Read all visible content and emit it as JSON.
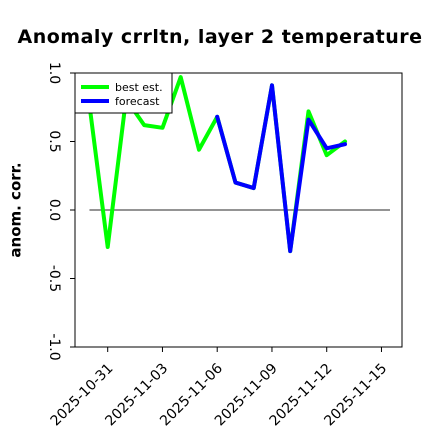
{
  "chart_data": {
    "type": "line",
    "title": "Anomaly crrltn, layer 2 temperature",
    "xlabel": "",
    "ylabel": "anom. corr.",
    "ylim": [
      -1.0,
      1.0
    ],
    "yticks": [
      -1.0,
      -0.5,
      0.0,
      0.5,
      1.0
    ],
    "ytick_labels": [
      "-1.0",
      "-0.5",
      "0.0",
      "0.5",
      "1.0"
    ],
    "xlim": [
      "2025-10-29T05:00",
      "2025-11-16T03:00"
    ],
    "xticks": [
      "2025-10-31",
      "2025-11-03",
      "2025-11-06",
      "2025-11-09",
      "2025-11-12",
      "2025-11-15"
    ],
    "xtick_labels": [
      "2025-10-31",
      "2025-11-03",
      "2025-11-06",
      "2025-11-09",
      "2025-11-12",
      "2025-11-15"
    ],
    "highlight_tick": "2025-11-06",
    "highlight_color": "#228B22",
    "reference_line": 0.0,
    "grid": false,
    "legend_position": "top-left",
    "series": [
      {
        "name": "best est.",
        "color": "#00ff00",
        "x": [
          "2025-10-30",
          "2025-10-31",
          "2025-11-01",
          "2025-11-02",
          "2025-11-03",
          "2025-11-04",
          "2025-11-05",
          "2025-11-06",
          "2025-11-07",
          "2025-11-08",
          "2025-11-09",
          "2025-11-10",
          "2025-11-11",
          "2025-11-12",
          "2025-11-13"
        ],
        "values": [
          0.77,
          -0.27,
          0.81,
          0.62,
          0.6,
          0.97,
          0.44,
          0.68,
          0.2,
          0.16,
          0.91,
          -0.3,
          0.72,
          0.4,
          0.5
        ]
      },
      {
        "name": "forecast",
        "color": "#0000ff",
        "x": [
          "2025-11-06",
          "2025-11-07",
          "2025-11-08",
          "2025-11-09",
          "2025-11-10",
          "2025-11-11",
          "2025-11-12",
          "2025-11-13"
        ],
        "values": [
          0.68,
          0.2,
          0.16,
          0.91,
          -0.3,
          0.66,
          0.45,
          0.48
        ]
      }
    ]
  }
}
